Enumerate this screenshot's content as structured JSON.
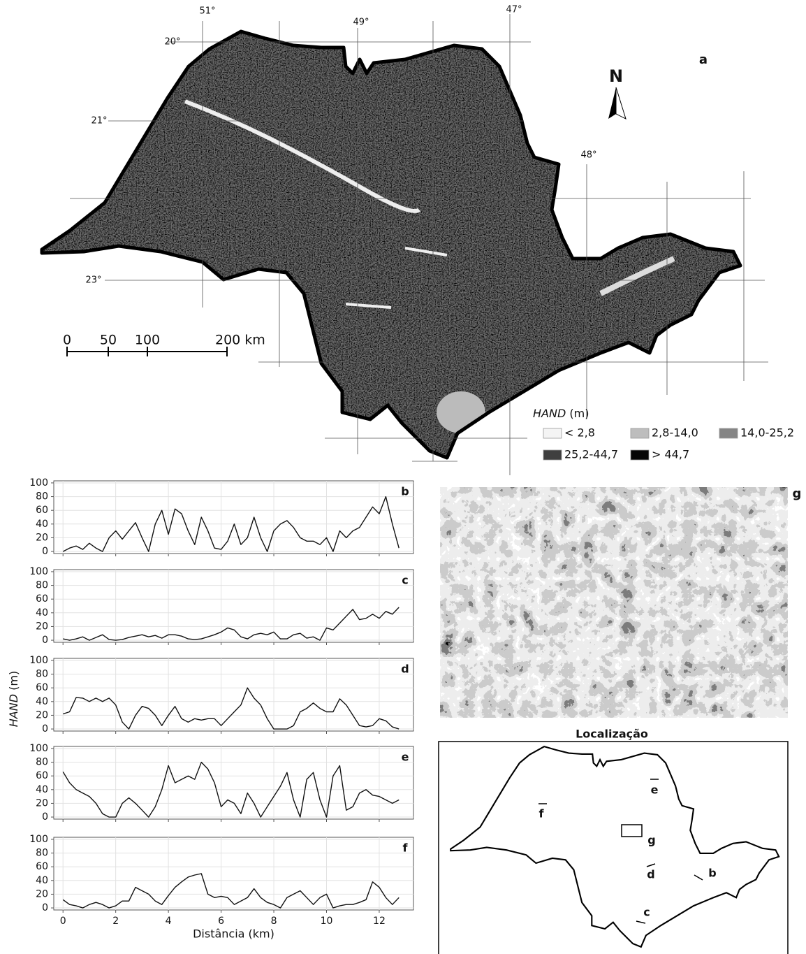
{
  "map": {
    "panel": "a",
    "lon_labels": [
      "51°",
      "49°",
      "47°",
      "48°"
    ],
    "lat_labels": [
      "20°",
      "21°",
      "23°"
    ],
    "north": "N",
    "scale_labels": [
      "0",
      "50",
      "100",
      "200 km"
    ],
    "legend_title": [
      "HAND",
      "(m)"
    ],
    "legend_classes": [
      {
        "label": "< 2,8",
        "color": "#f4f4f4"
      },
      {
        "label": "2,8-14,0",
        "color": "#bdbdbd"
      },
      {
        "label": "14,0-25,2",
        "color": "#858585"
      },
      {
        "label": "25,2-44,7",
        "color": "#3f3f3f"
      },
      {
        "label": "> 44,7",
        "color": "#050505"
      }
    ]
  },
  "profiles_ylabel": [
    "HAND",
    "(m)"
  ],
  "chart_data": [
    {
      "type": "line",
      "label": "b",
      "color": "#111111",
      "grid": true,
      "x": [
        0,
        0.25,
        0.5,
        0.75,
        1,
        1.25,
        1.5,
        1.75,
        2,
        2.25,
        2.5,
        2.75,
        3,
        3.25,
        3.5,
        3.75,
        4,
        4.25,
        4.5,
        4.75,
        5,
        5.25,
        5.5,
        5.75,
        6,
        6.25,
        6.5,
        6.75,
        7,
        7.25,
        7.5,
        7.75,
        8,
        8.25,
        8.5,
        8.75,
        9,
        9.25,
        9.5,
        9.75,
        10,
        10.25,
        10.5,
        10.75,
        11,
        11.25,
        11.5,
        11.75,
        12,
        12.25,
        12.5,
        12.75
      ],
      "values": [
        0,
        5,
        8,
        3,
        12,
        5,
        0,
        20,
        30,
        18,
        30,
        42,
        20,
        0,
        40,
        60,
        25,
        62,
        55,
        30,
        10,
        50,
        30,
        5,
        3,
        15,
        40,
        10,
        20,
        50,
        20,
        0,
        30,
        40,
        45,
        35,
        20,
        15,
        15,
        10,
        20,
        0,
        30,
        20,
        30,
        35,
        50,
        65,
        55,
        80,
        40,
        5
      ],
      "xlim": [
        -0.35,
        13.3
      ],
      "xticks": [
        0,
        2,
        4,
        6,
        8,
        10,
        12
      ],
      "ylim": [
        -3,
        103
      ],
      "yticks": [
        0,
        20,
        40,
        60,
        80,
        100
      ]
    },
    {
      "type": "line",
      "label": "c",
      "color": "#111111",
      "grid": true,
      "x": [
        0,
        0.25,
        0.5,
        0.75,
        1,
        1.25,
        1.5,
        1.75,
        2,
        2.25,
        2.5,
        2.75,
        3,
        3.25,
        3.5,
        3.75,
        4,
        4.25,
        4.5,
        4.75,
        5,
        5.25,
        5.5,
        5.75,
        6,
        6.25,
        6.5,
        6.75,
        7,
        7.25,
        7.5,
        7.75,
        8,
        8.25,
        8.5,
        8.75,
        9,
        9.25,
        9.5,
        9.75,
        10,
        10.25,
        10.5,
        10.75,
        11,
        11.25,
        11.5,
        11.75,
        12,
        12.25,
        12.5,
        12.75
      ],
      "values": [
        2,
        0,
        2,
        5,
        0,
        4,
        8,
        1,
        0,
        1,
        4,
        6,
        8,
        5,
        7,
        3,
        8,
        8,
        6,
        2,
        1,
        2,
        5,
        8,
        12,
        18,
        15,
        5,
        2,
        8,
        10,
        8,
        12,
        2,
        2,
        8,
        10,
        3,
        5,
        0,
        18,
        15,
        25,
        35,
        45,
        30,
        32,
        38,
        32,
        42,
        38,
        48
      ],
      "xlim": [
        -0.35,
        13.3
      ],
      "xticks": [
        0,
        2,
        4,
        6,
        8,
        10,
        12
      ],
      "ylim": [
        -3,
        103
      ],
      "yticks": [
        0,
        20,
        40,
        60,
        80,
        100
      ]
    },
    {
      "type": "line",
      "label": "d",
      "color": "#111111",
      "grid": true,
      "x": [
        0,
        0.25,
        0.5,
        0.75,
        1,
        1.25,
        1.5,
        1.75,
        2,
        2.25,
        2.5,
        2.75,
        3,
        3.25,
        3.5,
        3.75,
        4,
        4.25,
        4.5,
        4.75,
        5,
        5.25,
        5.5,
        5.75,
        6,
        6.25,
        6.5,
        6.75,
        7,
        7.25,
        7.5,
        7.75,
        8,
        8.25,
        8.5,
        8.75,
        9,
        9.25,
        9.5,
        9.75,
        10,
        10.25,
        10.5,
        10.75,
        11,
        11.25,
        11.5,
        11.75,
        12,
        12.25,
        12.5,
        12.75
      ],
      "values": [
        22,
        25,
        46,
        45,
        40,
        45,
        40,
        45,
        35,
        10,
        0,
        20,
        33,
        30,
        20,
        5,
        20,
        33,
        15,
        10,
        15,
        13,
        15,
        15,
        5,
        15,
        25,
        35,
        60,
        45,
        35,
        15,
        0,
        0,
        0,
        5,
        25,
        30,
        38,
        30,
        25,
        25,
        44,
        35,
        20,
        5,
        3,
        5,
        15,
        12,
        3,
        0
      ],
      "xlim": [
        -0.35,
        13.3
      ],
      "xticks": [
        0,
        2,
        4,
        6,
        8,
        10,
        12
      ],
      "ylim": [
        -3,
        103
      ],
      "yticks": [
        0,
        20,
        40,
        60,
        80,
        100
      ]
    },
    {
      "type": "line",
      "label": "e",
      "color": "#111111",
      "grid": true,
      "x": [
        0,
        0.25,
        0.5,
        0.75,
        1,
        1.25,
        1.5,
        1.75,
        2,
        2.25,
        2.5,
        2.75,
        3,
        3.25,
        3.5,
        3.75,
        4,
        4.25,
        4.5,
        4.75,
        5,
        5.25,
        5.5,
        5.75,
        6,
        6.25,
        6.5,
        6.75,
        7,
        7.25,
        7.5,
        7.75,
        8,
        8.25,
        8.5,
        8.75,
        9,
        9.25,
        9.5,
        9.75,
        10,
        10.25,
        10.5,
        10.75,
        11,
        11.25,
        11.5,
        11.75,
        12,
        12.25,
        12.5,
        12.75
      ],
      "values": [
        66,
        50,
        40,
        35,
        30,
        20,
        5,
        0,
        0,
        20,
        28,
        20,
        10,
        0,
        15,
        40,
        75,
        50,
        55,
        60,
        55,
        80,
        70,
        50,
        15,
        25,
        20,
        5,
        35,
        20,
        0,
        15,
        30,
        45,
        65,
        25,
        0,
        55,
        65,
        25,
        0,
        60,
        75,
        10,
        15,
        35,
        40,
        32,
        30,
        25,
        20,
        25
      ],
      "xlim": [
        -0.35,
        13.3
      ],
      "xticks": [
        0,
        2,
        4,
        6,
        8,
        10,
        12
      ],
      "ylim": [
        -3,
        103
      ],
      "yticks": [
        0,
        20,
        40,
        60,
        80,
        100
      ]
    },
    {
      "type": "line",
      "label": "f",
      "color": "#111111",
      "grid": true,
      "xlabel": "Distância (km)",
      "x": [
        0,
        0.25,
        0.5,
        0.75,
        1,
        1.25,
        1.5,
        1.75,
        2,
        2.25,
        2.5,
        2.75,
        3,
        3.25,
        3.5,
        3.75,
        4,
        4.25,
        4.5,
        4.75,
        5,
        5.25,
        5.5,
        5.75,
        6,
        6.25,
        6.5,
        6.75,
        7,
        7.25,
        7.5,
        7.75,
        8,
        8.25,
        8.5,
        8.75,
        9,
        9.25,
        9.5,
        9.75,
        10,
        10.25,
        10.5,
        10.75,
        11,
        11.25,
        11.5,
        11.75,
        12,
        12.25,
        12.5,
        12.75
      ],
      "values": [
        12,
        5,
        3,
        0,
        5,
        8,
        5,
        0,
        3,
        10,
        10,
        30,
        25,
        20,
        10,
        5,
        18,
        30,
        38,
        45,
        48,
        50,
        20,
        15,
        17,
        15,
        5,
        10,
        15,
        28,
        15,
        8,
        5,
        0,
        15,
        20,
        25,
        15,
        5,
        15,
        20,
        0,
        3,
        5,
        5,
        8,
        12,
        38,
        30,
        15,
        5,
        15
      ],
      "xlim": [
        -0.35,
        13.3
      ],
      "xticks": [
        0,
        2,
        4,
        6,
        8,
        10,
        12
      ],
      "ylim": [
        -3,
        103
      ],
      "yticks": [
        0,
        20,
        40,
        60,
        80,
        100
      ]
    }
  ],
  "panel_g": "g",
  "location": {
    "title": "Localização",
    "labels": [
      "e",
      "f",
      "g",
      "d",
      "b",
      "c"
    ]
  }
}
